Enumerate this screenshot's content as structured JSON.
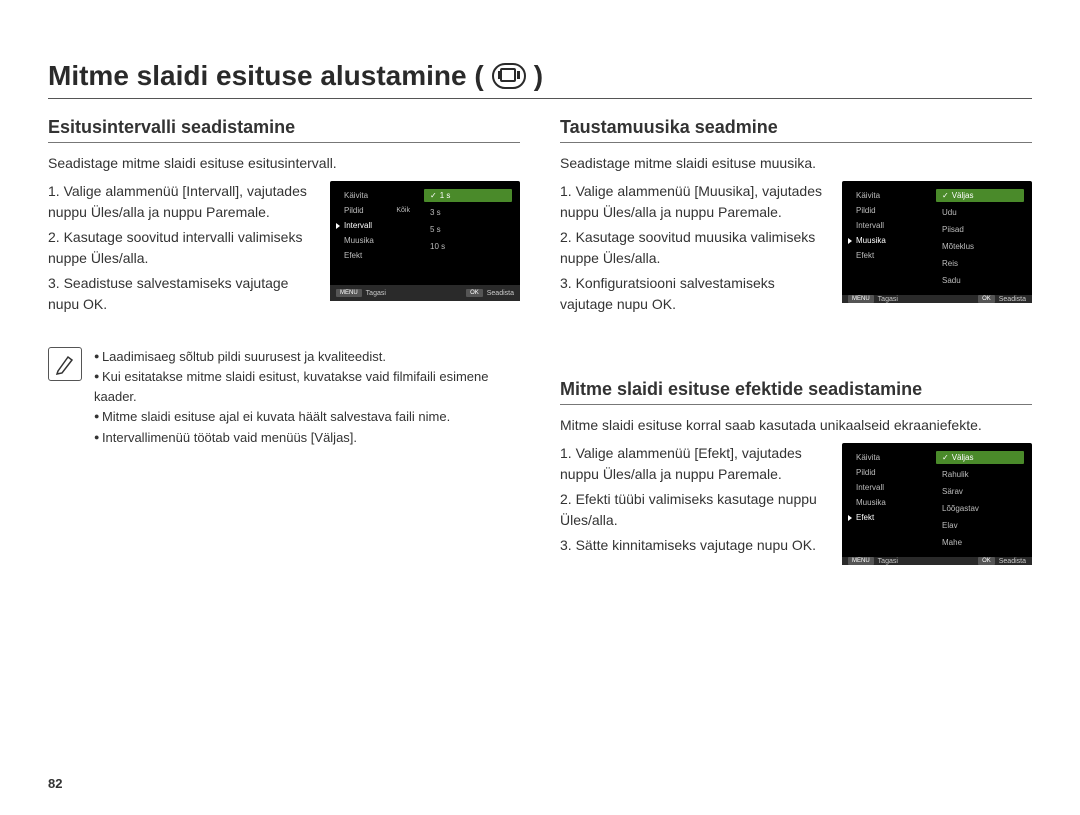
{
  "page_number": "82",
  "title": "Mitme slaidi esituse alustamine (",
  "title_suffix": ")",
  "colors": {
    "text": "#333333",
    "rule": "#555555",
    "lcd_bg": "#000000",
    "lcd_text": "#bdbdbd",
    "lcd_highlight": "#4a8a2a",
    "lcd_bottom": "#2a2a2a"
  },
  "left": {
    "sec1": {
      "title": "Esitusintervalli seadistamine",
      "intro": "Seadistage mitme slaidi esituse esitusintervall.",
      "steps": [
        "1. Valige alammenüü [Intervall], vajutades nuppu Üles/alla ja nuppu Paremale.",
        "2. Kasutage soovitud intervalli valimiseks nuppe Üles/alla.",
        "3. Seadistuse salvestamiseks vajutage nupu OK."
      ],
      "lcd": {
        "left_items": [
          "Käivita",
          "Pildid",
          "Intervall",
          "Muusika",
          "Efekt"
        ],
        "left_extra": "Kõik",
        "selected_left_index": 2,
        "right_items": [
          "1 s",
          "3 s",
          "5 s",
          "10 s"
        ],
        "selected_right_index": 0,
        "bottom_left_btn": "MENU",
        "bottom_left_label": "Tagasi",
        "bottom_right_btn": "OK",
        "bottom_right_label": "Seadista"
      }
    },
    "notes": [
      "Laadimisaeg sõltub pildi suurusest ja kvaliteedist.",
      "Kui esitatakse mitme slaidi esitust, kuvatakse vaid filmifaili esimene kaader.",
      "Mitme slaidi esituse ajal ei kuvata häält salvestava faili nime.",
      "Intervallimenüü töötab vaid menüüs [Väljas]."
    ]
  },
  "right": {
    "sec1": {
      "title": "Taustamuusika seadmine",
      "intro": "Seadistage mitme slaidi esituse muusika.",
      "steps": [
        "1. Valige alammenüü [Muusika], vajutades nuppu Üles/alla ja nuppu Paremale.",
        "2. Kasutage soovitud muusika valimiseks nuppe Üles/alla.",
        "3. Konfiguratsiooni salvestamiseks vajutage nupu OK."
      ],
      "lcd": {
        "left_items": [
          "Käivita",
          "Pildid",
          "Intervall",
          "Muusika",
          "Efekt"
        ],
        "selected_left_index": 3,
        "right_items": [
          "Väljas",
          "Udu",
          "Piisad",
          "Mõteklus",
          "Reis",
          "Sadu"
        ],
        "selected_right_index": 0,
        "bottom_left_btn": "MENU",
        "bottom_left_label": "Tagasi",
        "bottom_right_btn": "OK",
        "bottom_right_label": "Seadista"
      }
    },
    "sec2": {
      "title": "Mitme slaidi esituse efektide seadistamine",
      "intro": "Mitme slaidi esituse korral saab kasutada unikaalseid ekraaniefekte.",
      "steps": [
        "1. Valige alammenüü [Efekt], vajutades nuppu Üles/alla ja nuppu Paremale.",
        "2. Efekti tüübi valimiseks kasutage nuppu Üles/alla.",
        "3. Sätte kinnitamiseks vajutage nupu OK."
      ],
      "lcd": {
        "left_items": [
          "Käivita",
          "Pildid",
          "Intervall",
          "Muusika",
          "Efekt"
        ],
        "selected_left_index": 4,
        "right_items": [
          "Väljas",
          "Rahulik",
          "Särav",
          "Lõõgastav",
          "Elav",
          "Mahe"
        ],
        "selected_right_index": 0,
        "bottom_left_btn": "MENU",
        "bottom_left_label": "Tagasi",
        "bottom_right_btn": "OK",
        "bottom_right_label": "Seadista"
      }
    }
  }
}
